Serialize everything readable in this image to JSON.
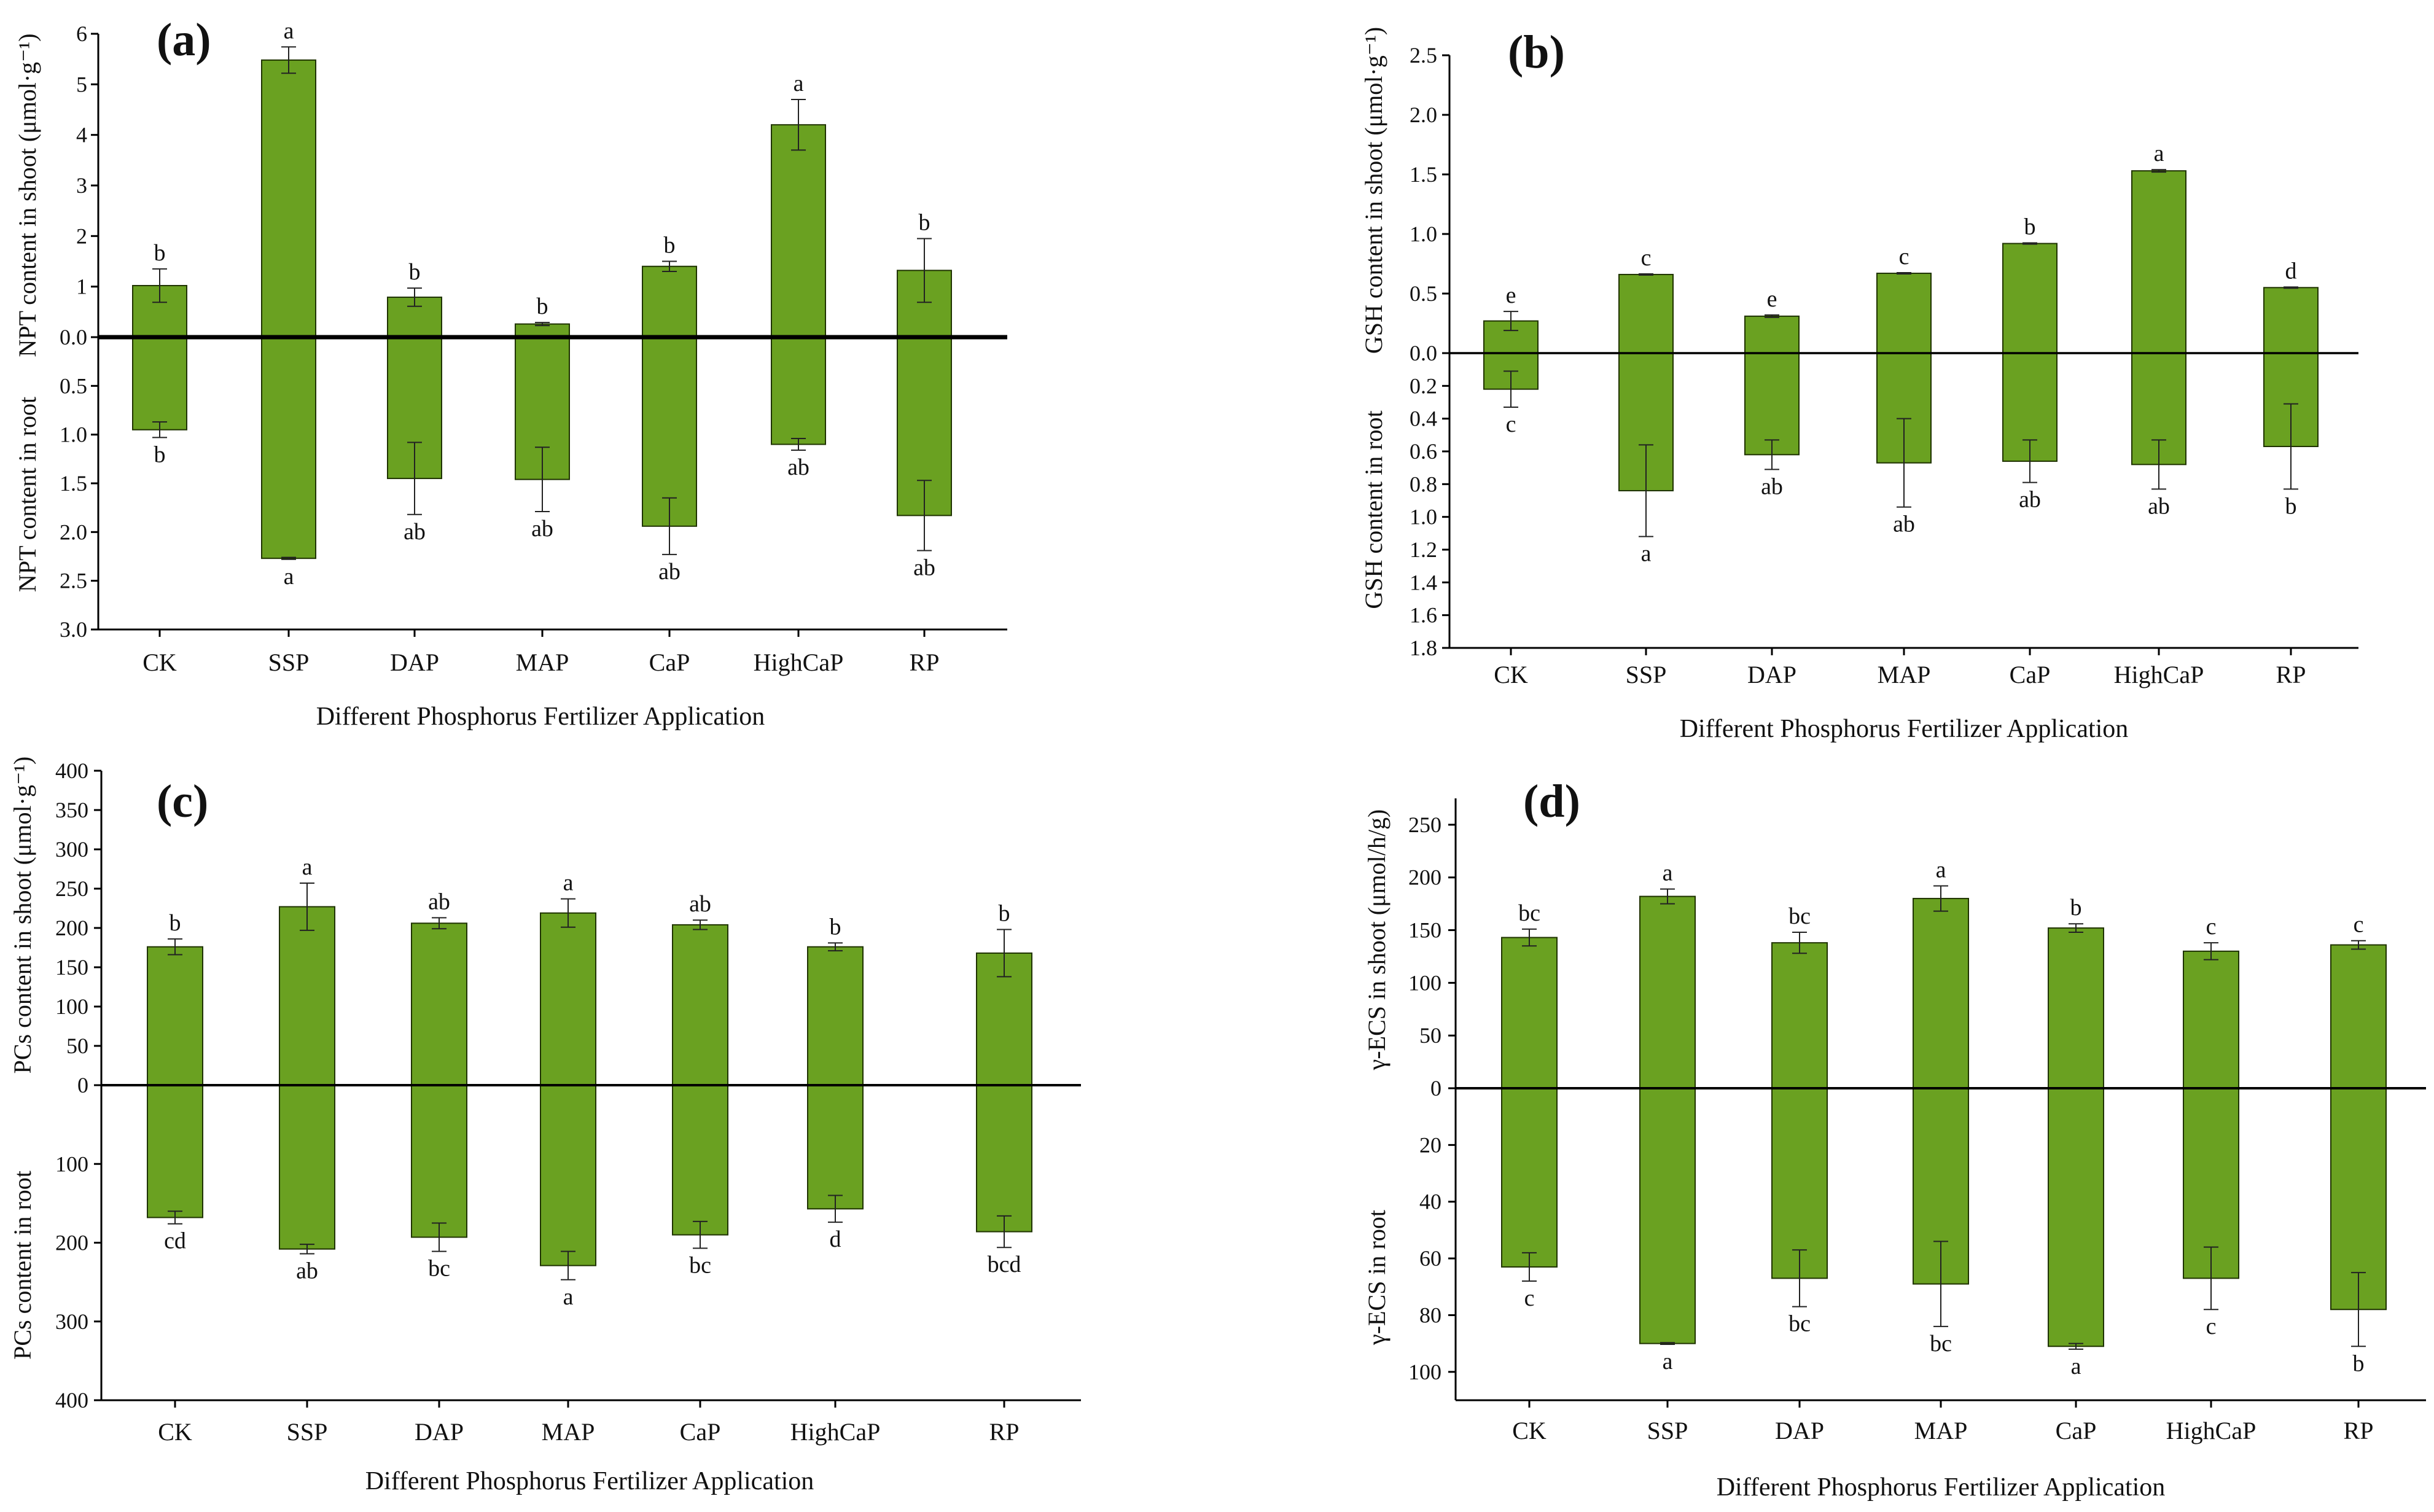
{
  "colors": {
    "bar": "#6aa121",
    "bar_stroke": "#1f3300",
    "axis": "#000000"
  },
  "chart_data": [
    {
      "panel": "(a)",
      "type": "bar",
      "title": "",
      "xlabel": "Different Phosphorus Fertilizer Application",
      "ylabel_top": "NPT content in shoot (μmol·g⁻¹)",
      "ylabel_bottom": "NPT content in root",
      "categories": [
        "CK",
        "SSP",
        "DAP",
        "MAP",
        "CaP",
        "HighCaP",
        "RP"
      ],
      "shoot": {
        "ylim": [
          0,
          6
        ],
        "ticks": [
          "0.0",
          "1",
          "2",
          "3",
          "4",
          "5",
          "6"
        ],
        "tick_values": [
          0,
          1,
          2,
          3,
          4,
          5,
          6
        ],
        "values": [
          1.02,
          5.48,
          0.79,
          0.26,
          1.4,
          4.2,
          1.32
        ],
        "errors": [
          0.33,
          0.26,
          0.18,
          0.03,
          0.1,
          0.5,
          0.63
        ],
        "letters": [
          "b",
          "a",
          "b",
          "b",
          "b",
          "a",
          "b"
        ]
      },
      "root": {
        "ylim": [
          0,
          3.0
        ],
        "ticks": [
          "0.5",
          "1.0",
          "1.5",
          "2.0",
          "2.5",
          "3.0"
        ],
        "tick_values": [
          0.5,
          1.0,
          1.5,
          2.0,
          2.5,
          3.0
        ],
        "values": [
          0.95,
          2.27,
          1.45,
          1.46,
          1.94,
          1.1,
          1.83
        ],
        "errors": [
          0.08,
          0.01,
          0.37,
          0.33,
          0.29,
          0.06,
          0.36
        ],
        "letters": [
          "b",
          "a",
          "ab",
          "ab",
          "ab",
          "ab",
          "ab"
        ]
      }
    },
    {
      "panel": "(b)",
      "type": "bar",
      "title": "",
      "xlabel": "Different Phosphorus Fertilizer Application",
      "ylabel_top": "GSH content in shoot (μmol·g⁻¹)",
      "ylabel_bottom": "GSH content in root",
      "categories": [
        "CK",
        "SSP",
        "DAP",
        "MAP",
        "CaP",
        "HighCaP",
        "RP"
      ],
      "shoot": {
        "ylim": [
          0,
          2.5
        ],
        "ticks": [
          "0.0",
          "0.5",
          "1.0",
          "1.5",
          "2.0",
          "2.5"
        ],
        "tick_values": [
          0,
          0.5,
          1.0,
          1.5,
          2.0,
          2.5
        ],
        "values": [
          0.27,
          0.66,
          0.31,
          0.67,
          0.92,
          1.53,
          0.55
        ],
        "errors": [
          0.08,
          0.005,
          0.01,
          0.005,
          0.005,
          0.01,
          0.005
        ],
        "letters": [
          "e",
          "c",
          "e",
          "c",
          "b",
          "a",
          "d"
        ]
      },
      "root": {
        "ylim": [
          0,
          1.8
        ],
        "ticks": [
          "0.2",
          "0.4",
          "0.6",
          "0.8",
          "1.0",
          "1.2",
          "1.4",
          "1.6",
          "1.8"
        ],
        "tick_values": [
          0.2,
          0.4,
          0.6,
          0.8,
          1.0,
          1.2,
          1.4,
          1.6,
          1.8
        ],
        "values": [
          0.22,
          0.84,
          0.62,
          0.67,
          0.66,
          0.68,
          0.57
        ],
        "errors": [
          0.11,
          0.28,
          0.09,
          0.27,
          0.13,
          0.15,
          0.26
        ],
        "letters": [
          "c",
          "a",
          "ab",
          "ab",
          "ab",
          "ab",
          "b"
        ]
      }
    },
    {
      "panel": "(c)",
      "type": "bar",
      "title": "",
      "xlabel": "Different Phosphorus Fertilizer Application",
      "ylabel_top": "PCs content in shoot (μmol·g⁻¹)",
      "ylabel_bottom": "PCs content in root",
      "categories": [
        "CK",
        "SSP",
        "DAP",
        "MAP",
        "CaP",
        "HighCaP",
        "RP"
      ],
      "shoot": {
        "ylim": [
          0,
          400
        ],
        "ticks": [
          "0",
          "50",
          "100",
          "150",
          "200",
          "250",
          "300",
          "350",
          "400"
        ],
        "tick_values": [
          0,
          50,
          100,
          150,
          200,
          250,
          300,
          350,
          400
        ],
        "values": [
          176,
          227,
          206,
          219,
          204,
          176,
          168
        ],
        "errors": [
          10,
          30,
          7,
          18,
          6,
          5,
          30
        ],
        "letters": [
          "b",
          "a",
          "ab",
          "a",
          "ab",
          "b",
          "b"
        ]
      },
      "root": {
        "ylim": [
          0,
          400
        ],
        "ticks": [
          "100",
          "200",
          "300",
          "400"
        ],
        "tick_values": [
          100,
          200,
          300,
          400
        ],
        "values": [
          168,
          208,
          193,
          229,
          190,
          157,
          186
        ],
        "errors": [
          8,
          6,
          18,
          18,
          17,
          17,
          20
        ],
        "letters": [
          "cd",
          "ab",
          "bc",
          "a",
          "bc",
          "d",
          "bcd"
        ]
      }
    },
    {
      "panel": "(d)",
      "type": "bar",
      "title": "",
      "xlabel": "Different Phosphorus Fertilizer Application",
      "ylabel_top": "γ-ECS in shoot (μmol/h/g)",
      "ylabel_bottom": "γ-ECS in root",
      "categories": [
        "CK",
        "SSP",
        "DAP",
        "MAP",
        "CaP",
        "HighCaP",
        "RP"
      ],
      "shoot": {
        "ylim": [
          0,
          275
        ],
        "ticks": [
          "0",
          "50",
          "100",
          "150",
          "200",
          "250"
        ],
        "tick_values": [
          0,
          50,
          100,
          150,
          200,
          250
        ],
        "values": [
          143,
          182,
          138,
          180,
          152,
          130,
          136
        ],
        "errors": [
          8,
          7,
          10,
          12,
          4,
          8,
          4
        ],
        "letters": [
          "bc",
          "a",
          "bc",
          "a",
          "b",
          "c",
          "c"
        ]
      },
      "root": {
        "ylim": [
          0,
          110
        ],
        "ticks": [
          "20",
          "40",
          "60",
          "80",
          "100"
        ],
        "tick_values": [
          20,
          40,
          60,
          80,
          100
        ],
        "values": [
          63,
          90,
          67,
          69,
          91,
          67,
          78
        ],
        "errors": [
          5,
          0.3,
          10,
          15,
          1,
          11,
          13
        ],
        "letters": [
          "c",
          "a",
          "bc",
          "bc",
          "a",
          "c",
          "b"
        ]
      }
    }
  ]
}
